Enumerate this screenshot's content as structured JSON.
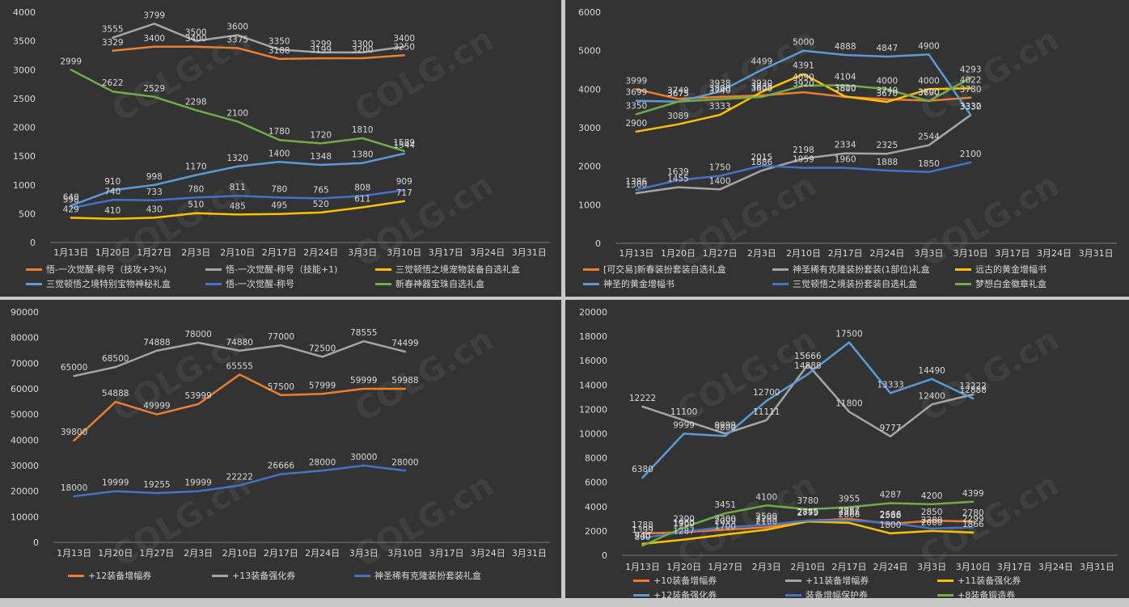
{
  "watermark": "COLG.cn",
  "chart_data": [
    {
      "type": "line",
      "categories": [
        "1月13日",
        "1月20日",
        "1月27日",
        "2月3日",
        "2月10日",
        "2月17日",
        "2月24日",
        "3月3日",
        "3月10日",
        "3月17日",
        "3月24日",
        "3月31日"
      ],
      "ylim": [
        0,
        4000
      ],
      "yticks": [
        0,
        500,
        1000,
        1500,
        2000,
        2500,
        3000,
        3500,
        4000
      ],
      "legend_columns": 3,
      "series": [
        {
          "name": "悟-一次觉醒-称号（技攻+3%)",
          "color": "#ed7d31",
          "values": [
            null,
            3329,
            3400,
            3400,
            3375,
            3188,
            3199,
            3200,
            3250,
            null,
            null,
            null
          ]
        },
        {
          "name": "悟-一次觉醒-称号（技能+1)",
          "color": "#a5a5a5",
          "values": [
            null,
            3555,
            3799,
            3500,
            3600,
            3350,
            3299,
            3300,
            3400,
            null,
            null,
            null
          ]
        },
        {
          "name": "三觉顿悟之境宠物装备自选礼盒",
          "color": "#ffc000",
          "values": [
            429,
            410,
            430,
            510,
            485,
            495,
            520,
            611,
            717,
            null,
            null,
            null
          ]
        },
        {
          "name": "三觉顿悟之境特别宝物神秘礼盒",
          "color": "#5b9bd5",
          "values": [
            640,
            910,
            998,
            1170,
            1320,
            1400,
            1348,
            1380,
            1544,
            null,
            null,
            null
          ]
        },
        {
          "name": "悟-一次觉醒-称号",
          "color": "#4472c4",
          "values": [
            598,
            740,
            733,
            780,
            811,
            780,
            765,
            808,
            909,
            null,
            null,
            null
          ]
        },
        {
          "name": "新春神器宝珠自选礼盒",
          "color": "#70ad47",
          "values": [
            2999,
            2622,
            2529,
            2298,
            2100,
            1780,
            1720,
            1810,
            1589,
            null,
            null,
            null
          ]
        }
      ]
    },
    {
      "type": "line",
      "categories": [
        "1月13日",
        "1月20日",
        "1月27日",
        "2月3日",
        "2月10日",
        "2月17日",
        "2月24日",
        "3月3日",
        "3月10日",
        "3月17日",
        "3月24日",
        "3月31日"
      ],
      "ylim": [
        0,
        6000
      ],
      "yticks": [
        0,
        1000,
        2000,
        3000,
        4000,
        5000,
        6000
      ],
      "legend_columns": 3,
      "series": [
        {
          "name": "[可交易]新春装扮套装自选礼盒",
          "color": "#ed7d31",
          "values": [
            3999,
            3749,
            3800,
            3838,
            3920,
            3800,
            3740,
            3700,
            3780,
            null,
            null,
            null
          ]
        },
        {
          "name": "神圣稀有克隆装扮套装(1部位)礼盒",
          "color": "#a5a5a5",
          "values": [
            1300,
            1455,
            1400,
            1886,
            2198,
            2334,
            2325,
            2544,
            3330,
            null,
            null,
            null
          ]
        },
        {
          "name": "远古的黄金增幅书",
          "color": "#ffc000",
          "values": [
            2900,
            3089,
            3333,
            3930,
            4391,
            3810,
            3670,
            4000,
            4022,
            null,
            null,
            null
          ]
        },
        {
          "name": "神圣的黄金增幅书",
          "color": "#5b9bd5",
          "values": [
            3699,
            3675,
            3938,
            4499,
            5000,
            4888,
            4847,
            4900,
            3332,
            null,
            null,
            null
          ]
        },
        {
          "name": "三觉顿悟之境装扮套装自选礼盒",
          "color": "#4472c4",
          "values": [
            1386,
            1639,
            1750,
            2015,
            1959,
            1960,
            1888,
            1850,
            2100,
            null,
            null,
            null
          ]
        },
        {
          "name": "梦想白金徽章礼盒",
          "color": "#70ad47",
          "values": [
            3350,
            3675,
            3740,
            3800,
            4090,
            4104,
            4000,
            3690,
            4293,
            null,
            null,
            null
          ]
        }
      ]
    },
    {
      "type": "line",
      "categories": [
        "1月13日",
        "1月20日",
        "1月27日",
        "2月3日",
        "2月10日",
        "2月17日",
        "2月24日",
        "3月3日",
        "3月10日",
        "3月17日",
        "3月24日",
        "3月31日"
      ],
      "ylim": [
        0,
        90000
      ],
      "yticks": [
        0,
        10000,
        20000,
        30000,
        40000,
        50000,
        60000,
        70000,
        80000,
        90000
      ],
      "legend_columns": 3,
      "series": [
        {
          "name": "+12装备增幅券",
          "color": "#ed7d31",
          "values": [
            39800,
            54888,
            49999,
            53999,
            65555,
            57500,
            57999,
            59999,
            59988,
            null,
            null,
            null
          ]
        },
        {
          "name": "+13装备强化券",
          "color": "#a5a5a5",
          "values": [
            65000,
            68500,
            74888,
            78000,
            74880,
            77000,
            72500,
            78555,
            74499,
            null,
            null,
            null
          ]
        },
        {
          "name": "神圣稀有克隆装扮套装礼盒",
          "color": "#4472c4",
          "values": [
            18000,
            19999,
            19255,
            19999,
            22222,
            26666,
            28000,
            30000,
            28000,
            null,
            null,
            null
          ]
        }
      ]
    },
    {
      "type": "line",
      "categories": [
        "1月13日",
        "1月20日",
        "1月27日",
        "2月3日",
        "2月10日",
        "2月17日",
        "2月24日",
        "3月3日",
        "3月10日",
        "3月17日",
        "3月24日",
        "3月31日"
      ],
      "ylim": [
        0,
        20000
      ],
      "yticks": [
        0,
        2000,
        4000,
        6000,
        8000,
        10000,
        12000,
        14000,
        16000,
        18000,
        20000
      ],
      "legend_columns": 3,
      "series": [
        {
          "name": "+10装备增幅券",
          "color": "#ed7d31",
          "values": [
            1788,
            1900,
            2099,
            2299,
            2845,
            2987,
            2588,
            2850,
            2780,
            null,
            null,
            null
          ]
        },
        {
          "name": "+11装备增幅券",
          "color": "#a5a5a5",
          "values": [
            12222,
            11100,
            9999,
            11111,
            15666,
            11800,
            9777,
            12400,
            13222,
            null,
            null,
            null
          ]
        },
        {
          "name": "+11装备强化券",
          "color": "#ffc000",
          "values": [
            940,
            1287,
            1700,
            2100,
            2779,
            2666,
            1800,
            2000,
            1866,
            null,
            null,
            null
          ]
        },
        {
          "name": "+12装备强化券",
          "color": "#5b9bd5",
          "values": [
            6380,
            9999,
            9800,
            12700,
            14888,
            17500,
            13333,
            14490,
            12888,
            null,
            null,
            null
          ]
        },
        {
          "name": "装备增幅保护券",
          "color": "#4472c4",
          "values": [
            1399,
            1960,
            2300,
            2500,
            2855,
            2855,
            2666,
            2200,
            2299,
            null,
            null,
            null
          ]
        },
        {
          "name": "+8装备锻造券",
          "color": "#70ad47",
          "values": [
            800,
            2300,
            3451,
            4100,
            3780,
            3955,
            4287,
            4200,
            4399,
            null,
            null,
            null
          ]
        }
      ]
    }
  ]
}
